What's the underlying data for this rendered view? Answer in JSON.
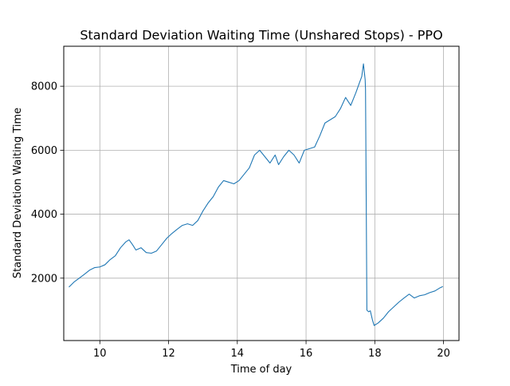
{
  "chart_data": {
    "type": "line",
    "title": "Standard Deviation Waiting Time (Unshared Stops) - PPO",
    "xlabel": "Time of day",
    "ylabel": "Standard Deviation Waiting Time",
    "xlim": [
      8.95,
      20.45
    ],
    "ylim": [
      50,
      9250
    ],
    "xticks": [
      10,
      12,
      14,
      16,
      18,
      20
    ],
    "yticks": [
      2000,
      4000,
      6000,
      8000
    ],
    "grid": true,
    "line_color": "#1f77b4",
    "series": [
      {
        "points": [
          [
            9.1,
            1720
          ],
          [
            9.25,
            1880
          ],
          [
            9.4,
            2000
          ],
          [
            9.55,
            2120
          ],
          [
            9.7,
            2250
          ],
          [
            9.85,
            2330
          ],
          [
            10.0,
            2350
          ],
          [
            10.15,
            2420
          ],
          [
            10.3,
            2580
          ],
          [
            10.45,
            2700
          ],
          [
            10.6,
            2950
          ],
          [
            10.75,
            3130
          ],
          [
            10.85,
            3200
          ],
          [
            10.95,
            3050
          ],
          [
            11.05,
            2880
          ],
          [
            11.2,
            2950
          ],
          [
            11.35,
            2800
          ],
          [
            11.5,
            2780
          ],
          [
            11.65,
            2850
          ],
          [
            11.8,
            3050
          ],
          [
            11.95,
            3250
          ],
          [
            12.1,
            3400
          ],
          [
            12.25,
            3530
          ],
          [
            12.4,
            3650
          ],
          [
            12.55,
            3700
          ],
          [
            12.7,
            3650
          ],
          [
            12.85,
            3800
          ],
          [
            13.0,
            4100
          ],
          [
            13.15,
            4350
          ],
          [
            13.3,
            4550
          ],
          [
            13.45,
            4850
          ],
          [
            13.6,
            5050
          ],
          [
            13.75,
            5000
          ],
          [
            13.9,
            4950
          ],
          [
            14.05,
            5050
          ],
          [
            14.2,
            5250
          ],
          [
            14.35,
            5450
          ],
          [
            14.5,
            5850
          ],
          [
            14.65,
            6000
          ],
          [
            14.8,
            5800
          ],
          [
            14.95,
            5600
          ],
          [
            15.1,
            5850
          ],
          [
            15.2,
            5550
          ],
          [
            15.35,
            5800
          ],
          [
            15.5,
            6000
          ],
          [
            15.65,
            5850
          ],
          [
            15.8,
            5600
          ],
          [
            15.95,
            6000
          ],
          [
            16.1,
            6050
          ],
          [
            16.25,
            6100
          ],
          [
            16.4,
            6450
          ],
          [
            16.55,
            6850
          ],
          [
            16.7,
            6950
          ],
          [
            16.85,
            7050
          ],
          [
            17.0,
            7300
          ],
          [
            17.15,
            7650
          ],
          [
            17.3,
            7400
          ],
          [
            17.45,
            7800
          ],
          [
            17.55,
            8100
          ],
          [
            17.62,
            8300
          ],
          [
            17.67,
            8700
          ],
          [
            17.72,
            8200
          ],
          [
            17.73,
            7900
          ],
          [
            17.75,
            4500
          ],
          [
            17.77,
            1000
          ],
          [
            17.82,
            950
          ],
          [
            17.87,
            980
          ],
          [
            17.93,
            700
          ],
          [
            17.98,
            520
          ],
          [
            18.1,
            600
          ],
          [
            18.25,
            750
          ],
          [
            18.4,
            950
          ],
          [
            18.55,
            1100
          ],
          [
            18.7,
            1250
          ],
          [
            18.85,
            1380
          ],
          [
            19.0,
            1500
          ],
          [
            19.15,
            1380
          ],
          [
            19.3,
            1450
          ],
          [
            19.45,
            1480
          ],
          [
            19.6,
            1550
          ],
          [
            19.75,
            1600
          ],
          [
            19.9,
            1700
          ],
          [
            19.98,
            1740
          ]
        ]
      }
    ]
  }
}
